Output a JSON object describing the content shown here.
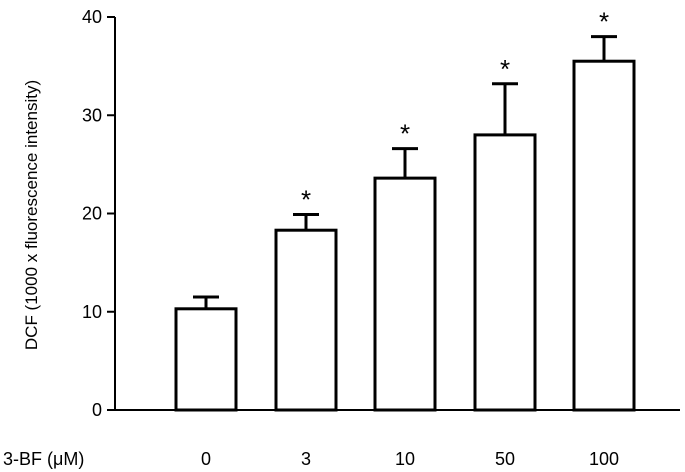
{
  "chart_data": {
    "type": "bar",
    "title": "",
    "xlabel": "3-BF (μM)",
    "ylabel": "DCF (1000 x fluorescence intensity)",
    "categories": [
      "0",
      "3",
      "10",
      "50",
      "100"
    ],
    "values": [
      10.3,
      18.3,
      23.6,
      28.0,
      35.5
    ],
    "errors": [
      1.2,
      1.6,
      3.0,
      5.2,
      2.5
    ],
    "significance": [
      "",
      "*",
      "*",
      "*",
      "*"
    ],
    "ylim": [
      0,
      40
    ],
    "yticks": [
      0,
      10,
      20,
      30,
      40
    ],
    "grid": false,
    "bar_fill": "#ffffff",
    "bar_stroke": "#000000"
  }
}
